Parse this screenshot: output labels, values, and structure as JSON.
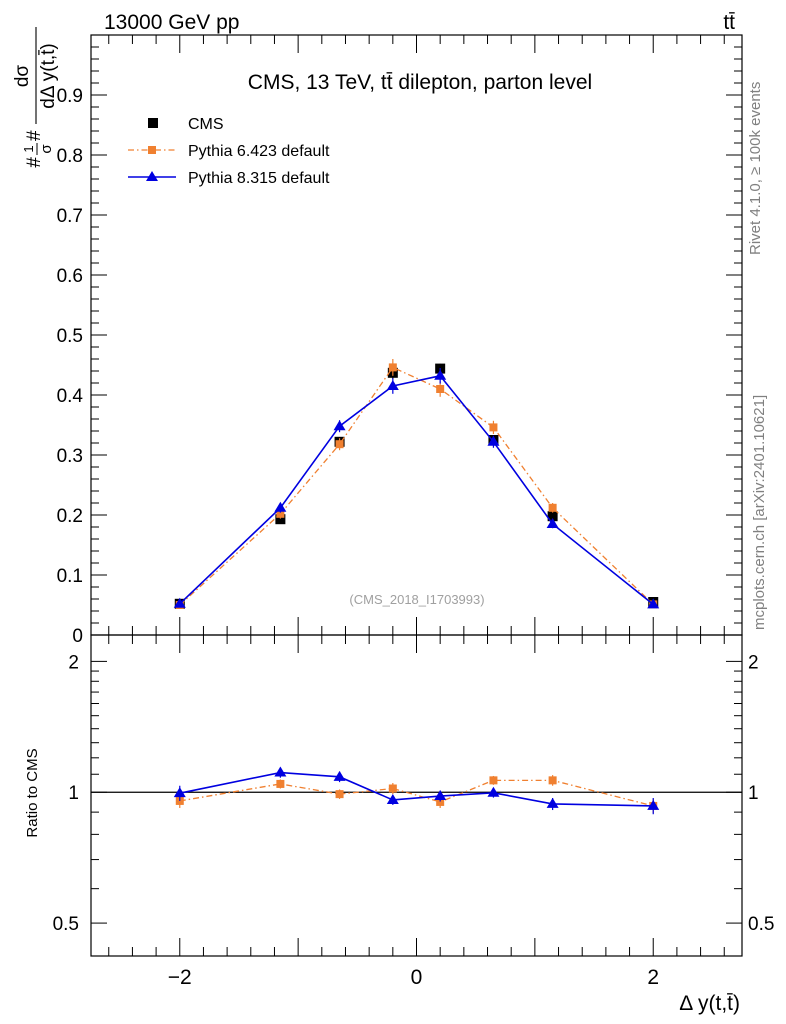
{
  "header": {
    "left": "13000 GeV pp",
    "right": "tt̄"
  },
  "side_labels": {
    "rivet": "Rivet 4.1.0, ≥ 100k events",
    "mcplots": "mcplots.cern.ch [arXiv:2401.10621]"
  },
  "colors": {
    "cms": "#000000",
    "pythia6": "#f08030",
    "pythia8": "#0000e0",
    "watermark": "#a0a0a0"
  },
  "chart_data": [
    {
      "type": "scatter",
      "panel": "main",
      "title": "CMS, 13 TeV, tt̄ dilepton, parton level",
      "watermark": "(CMS_2018_I1703993)",
      "ylabel": "#1/σ# dσ / dΔ y(t,t̄)",
      "ylabel_parts": {
        "prefix": "#",
        "num": "1",
        "den": "σ",
        "mid": "#",
        "frac_num": "dσ",
        "frac_den": "dΔ y(t,t̄)"
      },
      "xlabel": "Δ y(t,t̄)",
      "xlim": [
        -2.75,
        2.75
      ],
      "ylim": [
        0,
        1.0
      ],
      "yticks": [
        0,
        0.1,
        0.2,
        0.3,
        0.4,
        0.5,
        0.6,
        0.7,
        0.8,
        0.9
      ],
      "ytick_labels": [
        "0",
        "0.1",
        "0.2",
        "0.3",
        "0.4",
        "0.5",
        "0.6",
        "0.7",
        "0.8",
        "0.9"
      ],
      "xticks": [
        -2,
        0,
        2
      ],
      "xtick_labels": [
        "−2",
        "0",
        "2"
      ],
      "legend": [
        {
          "name": "CMS",
          "style": "square-marker"
        },
        {
          "name": "Pythia 6.423 default",
          "style": "dash-dot-square"
        },
        {
          "name": "Pythia 8.315 default",
          "style": "solid-triangle"
        }
      ],
      "series": [
        {
          "name": "CMS",
          "key": "cms",
          "x": [
            -2.0,
            -1.15,
            -0.65,
            -0.2,
            0.2,
            0.65,
            1.15,
            2.0
          ],
          "y": [
            0.052,
            0.193,
            0.322,
            0.437,
            0.444,
            0.325,
            0.198,
            0.055
          ],
          "err": [
            0.004,
            0.006,
            0.008,
            0.01,
            0.008,
            0.007,
            0.007,
            0.004
          ]
        },
        {
          "name": "Pythia 6.423 default",
          "key": "pythia6",
          "x": [
            -2.0,
            -1.15,
            -0.65,
            -0.2,
            0.2,
            0.65,
            1.15,
            2.0
          ],
          "y": [
            0.05,
            0.202,
            0.318,
            0.446,
            0.41,
            0.346,
            0.212,
            0.051
          ],
          "err": [
            0.004,
            0.008,
            0.01,
            0.014,
            0.013,
            0.011,
            0.008,
            0.004
          ]
        },
        {
          "name": "Pythia 8.315 default",
          "key": "pythia8",
          "x": [
            -2.0,
            -1.15,
            -0.65,
            -0.2,
            0.2,
            0.65,
            1.15,
            2.0
          ],
          "y": [
            0.052,
            0.212,
            0.348,
            0.415,
            0.432,
            0.322,
            0.185,
            0.051
          ],
          "err": [
            0.004,
            0.008,
            0.01,
            0.013,
            0.013,
            0.01,
            0.007,
            0.004
          ]
        }
      ]
    },
    {
      "type": "scatter",
      "panel": "ratio",
      "ylabel": "Ratio to CMS",
      "yscale": "log",
      "ylim": [
        0.42,
        2.3
      ],
      "yticks": [
        0.5,
        1,
        2
      ],
      "ytick_labels": [
        "0.5",
        "1",
        "2"
      ],
      "reference_line": 1,
      "series": [
        {
          "name": "Pythia 6.423 default",
          "key": "pythia6",
          "x": [
            -2.0,
            -1.15,
            -0.65,
            -0.2,
            0.2,
            0.65,
            1.15,
            2.0
          ],
          "y": [
            0.955,
            1.045,
            0.99,
            1.02,
            0.95,
            1.065,
            1.065,
            0.93
          ],
          "err": [
            0.035,
            0.025,
            0.025,
            0.03,
            0.03,
            0.025,
            0.03,
            0.035
          ]
        },
        {
          "name": "Pythia 8.315 default",
          "key": "pythia8",
          "x": [
            -2.0,
            -1.15,
            -0.65,
            -0.2,
            0.2,
            0.65,
            1.15,
            2.0
          ],
          "y": [
            0.995,
            1.11,
            1.085,
            0.96,
            0.98,
            0.997,
            0.94,
            0.93
          ],
          "err": [
            0.04,
            0.03,
            0.03,
            0.025,
            0.028,
            0.025,
            0.03,
            0.04
          ]
        }
      ]
    }
  ]
}
